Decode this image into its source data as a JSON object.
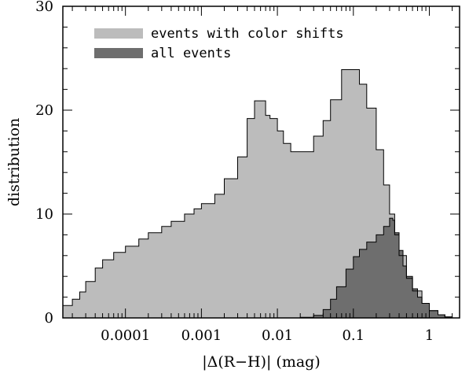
{
  "chart_data": {
    "type": "area",
    "xlabel": "|Δ(R−H)| (mag)",
    "ylabel": "distribution",
    "x_scale": "log",
    "xlim": [
      1.5e-05,
      2.5
    ],
    "ylim": [
      0,
      30
    ],
    "x_ticks": [
      {
        "value": 0.0001,
        "label": "0.0001"
      },
      {
        "value": 0.001,
        "label": "0.001"
      },
      {
        "value": 0.01,
        "label": "0.01"
      },
      {
        "value": 0.1,
        "label": "0.1"
      },
      {
        "value": 1,
        "label": "1"
      }
    ],
    "y_ticks": [
      {
        "value": 0,
        "label": "0"
      },
      {
        "value": 10,
        "label": "10"
      },
      {
        "value": 20,
        "label": "20"
      },
      {
        "value": 30,
        "label": "30"
      }
    ],
    "legend_position": "top-left",
    "series": [
      {
        "name": "events with color shifts",
        "color": "#bcbcbc",
        "points": [
          [
            1.5e-05,
            1.2
          ],
          [
            2e-05,
            1.8
          ],
          [
            2.5e-05,
            2.5
          ],
          [
            3e-05,
            3.5
          ],
          [
            4e-05,
            4.8
          ],
          [
            5e-05,
            5.6
          ],
          [
            7e-05,
            6.3
          ],
          [
            0.0001,
            6.9
          ],
          [
            0.00015,
            7.6
          ],
          [
            0.0002,
            8.2
          ],
          [
            0.0003,
            8.8
          ],
          [
            0.0004,
            9.3
          ],
          [
            0.0006,
            10.0
          ],
          [
            0.0008,
            10.5
          ],
          [
            0.001,
            11.0
          ],
          [
            0.0015,
            11.9
          ],
          [
            0.002,
            13.4
          ],
          [
            0.003,
            15.5
          ],
          [
            0.004,
            19.2
          ],
          [
            0.005,
            20.9
          ],
          [
            0.006,
            20.9
          ],
          [
            0.007,
            19.5
          ],
          [
            0.008,
            19.2
          ],
          [
            0.01,
            18.0
          ],
          [
            0.012,
            16.8
          ],
          [
            0.015,
            16.0
          ],
          [
            0.02,
            16.0
          ],
          [
            0.025,
            16.0
          ],
          [
            0.03,
            17.5
          ],
          [
            0.04,
            19.0
          ],
          [
            0.05,
            21.0
          ],
          [
            0.07,
            23.9
          ],
          [
            0.1,
            23.9
          ],
          [
            0.12,
            22.5
          ],
          [
            0.15,
            20.2
          ],
          [
            0.2,
            16.2
          ],
          [
            0.25,
            12.8
          ],
          [
            0.3,
            10.0
          ],
          [
            0.35,
            8.0
          ],
          [
            0.4,
            6.0
          ],
          [
            0.5,
            3.8
          ],
          [
            0.6,
            2.6
          ],
          [
            0.8,
            1.4
          ],
          [
            1.0,
            0.7
          ],
          [
            1.3,
            0.3
          ],
          [
            1.6,
            0.1
          ],
          [
            2.0,
            0.0
          ]
        ]
      },
      {
        "name": "all events",
        "color": "#6e6e6e",
        "points": [
          [
            0.015,
            0.0
          ],
          [
            0.02,
            0.05
          ],
          [
            0.03,
            0.25
          ],
          [
            0.04,
            0.8
          ],
          [
            0.05,
            1.8
          ],
          [
            0.06,
            3.0
          ],
          [
            0.08,
            4.7
          ],
          [
            0.1,
            5.9
          ],
          [
            0.12,
            6.6
          ],
          [
            0.15,
            7.3
          ],
          [
            0.2,
            8.0
          ],
          [
            0.25,
            8.8
          ],
          [
            0.3,
            9.6
          ],
          [
            0.33,
            9.4
          ],
          [
            0.35,
            8.2
          ],
          [
            0.4,
            6.5
          ],
          [
            0.45,
            5.0
          ],
          [
            0.5,
            4.0
          ],
          [
            0.6,
            2.8
          ],
          [
            0.7,
            2.0
          ],
          [
            0.8,
            1.4
          ],
          [
            1.0,
            0.7
          ],
          [
            1.3,
            0.3
          ],
          [
            1.6,
            0.1
          ],
          [
            2.0,
            0.0
          ]
        ]
      }
    ]
  }
}
